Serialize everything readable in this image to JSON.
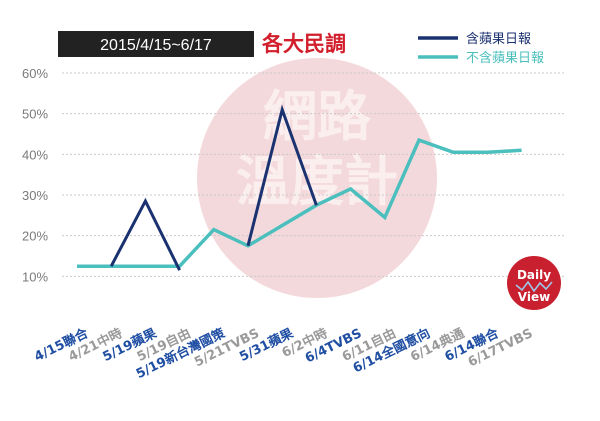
{
  "header": {
    "date_range": "2015/4/15~6/17",
    "title": "各大民調"
  },
  "watermark": {
    "text_line1": "網路",
    "text_line2": "溫度計",
    "logo_line1": "Daily",
    "logo_line2": "View"
  },
  "colors": {
    "with_apple": "#1b3270",
    "without_apple": "#4bbfbd",
    "title_red": "#d21e2b",
    "grid": "#c9c9c9",
    "axis_text": "#7a7a7a",
    "tick_blue": "#1f4ea3",
    "tick_gray": "#9a9a9a",
    "date_box": "#222222"
  },
  "chart_data": {
    "type": "line",
    "title": "各大民調",
    "subtitle": "2015/4/15~6/17",
    "ylim": [
      0,
      60
    ],
    "yticks": [
      10,
      20,
      30,
      40,
      50,
      60
    ],
    "ytick_labels": [
      "10%",
      "20%",
      "30%",
      "40%",
      "50%",
      "60%"
    ],
    "categories": [
      "4/15聯合",
      "4/21中時",
      "5/19蘋果",
      "5/19自由",
      "5/19新台灣國策",
      "5/21TVBS",
      "5/31蘋果",
      "6/2中時",
      "6/4TVBS",
      "6/11自由",
      "6/14全國意向",
      "6/14典通",
      "6/14聯合",
      "6/17TVBS"
    ],
    "category_colors": [
      "blue",
      "gray",
      "blue",
      "gray",
      "blue",
      "gray",
      "blue",
      "gray",
      "blue",
      "gray",
      "blue",
      "gray",
      "blue",
      "gray"
    ],
    "legend_position": "top-right",
    "grid": true,
    "series": [
      {
        "name": "含蘋果日報",
        "color": "#1b3270",
        "values": [
          null,
          12.5,
          28.5,
          11.5,
          null,
          17.5,
          51,
          27.5,
          null,
          null,
          null,
          null,
          null,
          null
        ]
      },
      {
        "name": "不含蘋果日報",
        "color": "#4bbfbd",
        "values": [
          12.5,
          12.5,
          12.5,
          12.5,
          21.5,
          17.5,
          22.5,
          27.5,
          31.5,
          24.5,
          43.5,
          40.5,
          40.5,
          41
        ]
      }
    ]
  }
}
